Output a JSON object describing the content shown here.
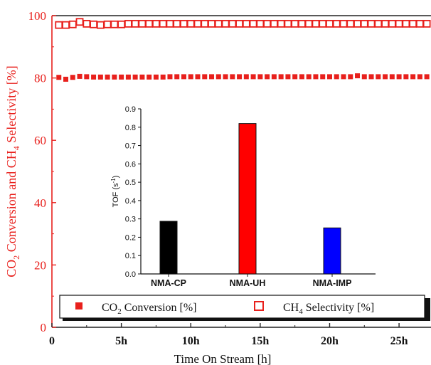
{
  "chart_data": [
    {
      "type": "scatter",
      "title": "",
      "xlabel": "Time On Stream [h]",
      "ylabel_parts": {
        "a": "CO",
        "a_sub": "2",
        "b": " Conversion and CH",
        "b_sub": "4",
        "c": " Selectivity [%]"
      },
      "xlim": [
        0,
        27.3
      ],
      "ylim": [
        0,
        100
      ],
      "x_ticks": [
        0,
        5,
        10,
        15,
        20,
        25
      ],
      "x_tick_labels": [
        "0",
        "5h",
        "10h",
        "15h",
        "20h",
        "25h"
      ],
      "y_ticks": [
        0,
        20,
        40,
        60,
        80,
        100
      ],
      "y_tick_labels": [
        "0",
        "20",
        "40",
        "60",
        "80",
        "100"
      ],
      "grid": false,
      "legend_position": "bottom",
      "axis_color": "#e8201c",
      "series": [
        {
          "legend_parts": {
            "a": "CO",
            "sub": "2",
            "b": " Conversion [%]"
          },
          "marker": "filled-square",
          "color": "#e8201c",
          "x": [
            0.5,
            1.0,
            1.5,
            2.0,
            2.5,
            3.0,
            3.5,
            4.0,
            4.5,
            5.0,
            5.5,
            6.0,
            6.5,
            7.0,
            7.5,
            8.0,
            8.5,
            9.0,
            9.5,
            10.0,
            10.5,
            11.0,
            11.5,
            12.0,
            12.5,
            13.0,
            13.5,
            14.0,
            14.5,
            15.0,
            15.5,
            16.0,
            16.5,
            17.0,
            17.5,
            18.0,
            18.5,
            19.0,
            19.5,
            20.0,
            20.5,
            21.0,
            21.5,
            22.0,
            22.5,
            23.0,
            23.5,
            24.0,
            24.5,
            25.0,
            25.5,
            26.0,
            26.5,
            27.0
          ],
          "y": [
            80.2,
            79.6,
            80.2,
            80.5,
            80.4,
            80.3,
            80.3,
            80.3,
            80.3,
            80.3,
            80.3,
            80.3,
            80.3,
            80.3,
            80.3,
            80.3,
            80.4,
            80.4,
            80.4,
            80.4,
            80.4,
            80.4,
            80.4,
            80.4,
            80.4,
            80.4,
            80.4,
            80.4,
            80.4,
            80.4,
            80.4,
            80.4,
            80.4,
            80.4,
            80.4,
            80.4,
            80.4,
            80.4,
            80.4,
            80.4,
            80.4,
            80.4,
            80.4,
            80.7,
            80.4,
            80.4,
            80.4,
            80.4,
            80.4,
            80.4,
            80.4,
            80.4,
            80.4,
            80.4
          ]
        },
        {
          "legend_parts": {
            "a": "CH",
            "sub": "4",
            "b": " Selectivity [%]"
          },
          "marker": "open-square",
          "color": "#e8201c",
          "x": [
            0.5,
            1.0,
            1.5,
            2.0,
            2.5,
            3.0,
            3.5,
            4.0,
            4.5,
            5.0,
            5.5,
            6.0,
            6.5,
            7.0,
            7.5,
            8.0,
            8.5,
            9.0,
            9.5,
            10.0,
            10.5,
            11.0,
            11.5,
            12.0,
            12.5,
            13.0,
            13.5,
            14.0,
            14.5,
            15.0,
            15.5,
            16.0,
            16.5,
            17.0,
            17.5,
            18.0,
            18.5,
            19.0,
            19.5,
            20.0,
            20.5,
            21.0,
            21.5,
            22.0,
            22.5,
            23.0,
            23.5,
            24.0,
            24.5,
            25.0,
            25.5,
            26.0,
            26.5,
            27.0
          ],
          "y": [
            97.0,
            97.0,
            97.2,
            98.0,
            97.4,
            97.2,
            97.0,
            97.2,
            97.2,
            97.2,
            97.4,
            97.4,
            97.4,
            97.4,
            97.4,
            97.4,
            97.4,
            97.4,
            97.4,
            97.4,
            97.4,
            97.4,
            97.4,
            97.4,
            97.4,
            97.4,
            97.4,
            97.4,
            97.4,
            97.4,
            97.4,
            97.4,
            97.4,
            97.4,
            97.4,
            97.4,
            97.4,
            97.4,
            97.4,
            97.4,
            97.4,
            97.4,
            97.4,
            97.4,
            97.4,
            97.4,
            97.4,
            97.4,
            97.4,
            97.4,
            97.4,
            97.4,
            97.4,
            97.4
          ]
        }
      ]
    },
    {
      "type": "bar",
      "title": "",
      "xlabel": "",
      "ylabel_parts": {
        "a": "TOF (s",
        "sup": "-1",
        "b": ")"
      },
      "ylim": [
        0,
        0.9
      ],
      "y_ticks": [
        0.0,
        0.1,
        0.2,
        0.3,
        0.4,
        0.5,
        0.6,
        0.7,
        0.8,
        0.9
      ],
      "y_tick_labels": [
        "0.0",
        "0.1",
        "0.2",
        "0.3",
        "0.4",
        "0.5",
        "0.6",
        "0.7",
        "0.8",
        "0.9"
      ],
      "categories": [
        "NMA-CP",
        "NMA-UH",
        "NMA-IMP"
      ],
      "values": [
        0.287,
        0.82,
        0.251
      ],
      "colors": [
        "#000000",
        "#ff0000",
        "#0000ff"
      ],
      "grid": false
    }
  ]
}
